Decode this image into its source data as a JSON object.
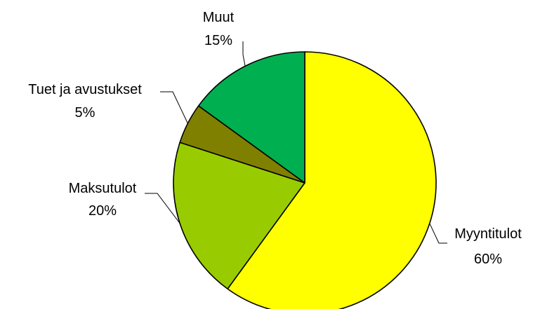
{
  "chart_data": {
    "type": "pie",
    "title": "",
    "slices": [
      {
        "label": "Myyntitulot",
        "value": 60,
        "value_label": "60%",
        "color": "#ffff00"
      },
      {
        "label": "Maksutulot",
        "value": 20,
        "value_label": "20%",
        "color": "#99cc00"
      },
      {
        "label": "Tuet ja avustukset",
        "value": 5,
        "value_label": "5%",
        "color": "#808000"
      },
      {
        "label": "Muut",
        "value": 15,
        "value_label": "15%",
        "color": "#00b050"
      }
    ],
    "start": "12 o'clock",
    "direction": "clockwise",
    "legend": "none",
    "data_labels": "outside with leader lines"
  }
}
